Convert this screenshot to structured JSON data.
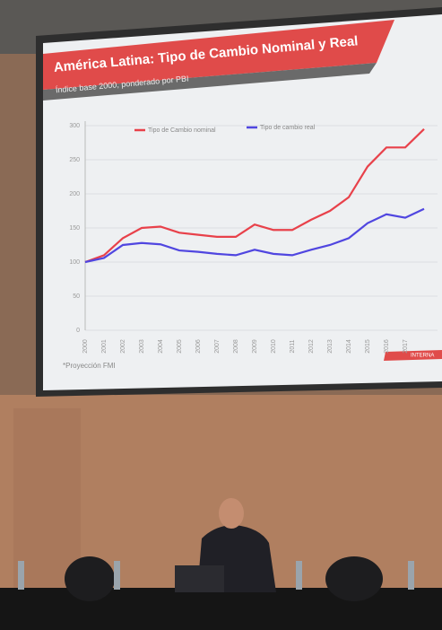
{
  "chart_data": {
    "type": "line",
    "title": "América Latina: Tipo de Cambio Nominal y Real",
    "subtitle": "Índice base 2000, ponderado por PBI",
    "note": "*Proyección FMI",
    "footer": "INTERNA",
    "categories": [
      "2000",
      "2001",
      "2002",
      "2003",
      "2004",
      "2005",
      "2006",
      "2007",
      "2008",
      "2009",
      "2010",
      "2011",
      "2012",
      "2013",
      "2014",
      "2015",
      "2016",
      "2017",
      null
    ],
    "series": [
      {
        "name": "Tipo de Cambio nominal",
        "color": "#e8414a",
        "values": [
          100,
          110,
          135,
          150,
          152,
          143,
          140,
          137,
          137,
          155,
          147,
          147,
          162,
          175,
          195,
          240,
          268,
          268,
          295
        ]
      },
      {
        "name": "Tipo de cambio real",
        "color": "#5046e0",
        "values": [
          100,
          106,
          125,
          128,
          126,
          117,
          115,
          112,
          110,
          118,
          112,
          110,
          118,
          125,
          135,
          157,
          170,
          165,
          178
        ]
      }
    ],
    "ylim": [
      0,
      300
    ],
    "yticks": [
      0,
      50,
      100,
      150,
      200,
      250,
      300
    ],
    "grid": true
  }
}
